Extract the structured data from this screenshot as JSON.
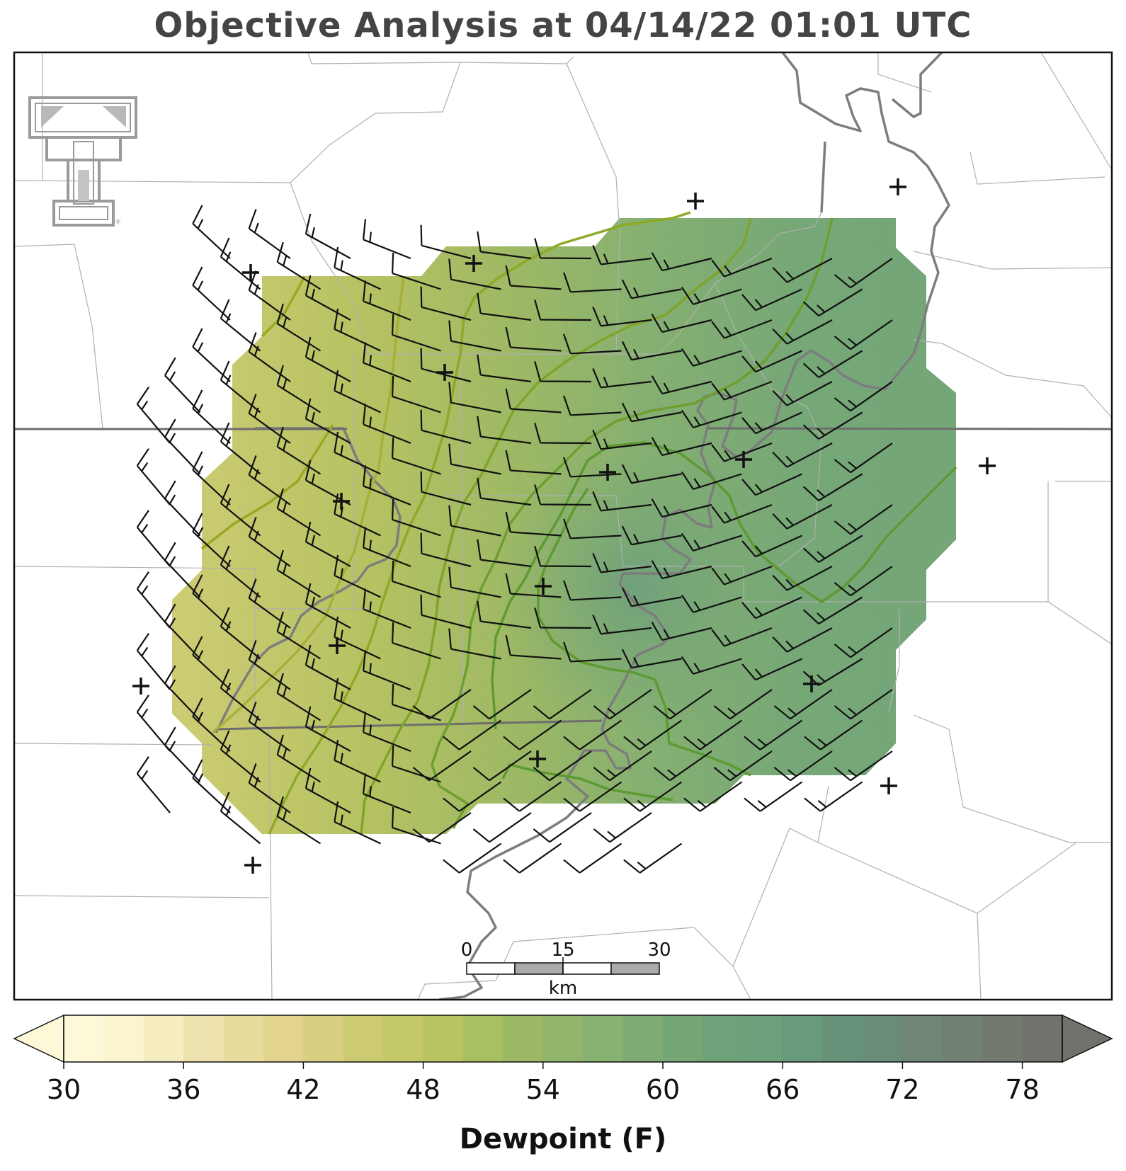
{
  "title": "Objective Analysis at 04/14/22 01:01 UTC",
  "colorbar": {
    "label": "Dewpoint (F)",
    "min": 30,
    "max": 80,
    "step": 2,
    "ticks": [
      "30",
      "36",
      "42",
      "48",
      "54",
      "60",
      "66",
      "72",
      "78"
    ],
    "extend": "both",
    "colors": [
      "#fdf9d8",
      "#faf4cf",
      "#f5ecc0",
      "#eee3ae",
      "#e8dc9d",
      "#e2d38d",
      "#d8cf80",
      "#cdcb72",
      "#c3c866",
      "#b8c462",
      "#a9c062",
      "#9cb865",
      "#91b56a",
      "#88b271",
      "#7dab72",
      "#74a676",
      "#6ea37a",
      "#6ba07b",
      "#679b7b",
      "#67927a",
      "#6b8b79",
      "#6f8576",
      "#727f73",
      "#727a70",
      "#6f736b"
    ]
  },
  "scale_bar": {
    "labels": [
      "0",
      "15",
      "30"
    ],
    "unit": "km"
  },
  "logo": {
    "name": "Texas Tech Double T",
    "color": "#9a9a9a"
  },
  "colors": {
    "contour": "#5a8a2a",
    "state_border": "#777777",
    "county_border": "#b0b0b0",
    "river": "#888888",
    "barb": "#111111"
  }
}
